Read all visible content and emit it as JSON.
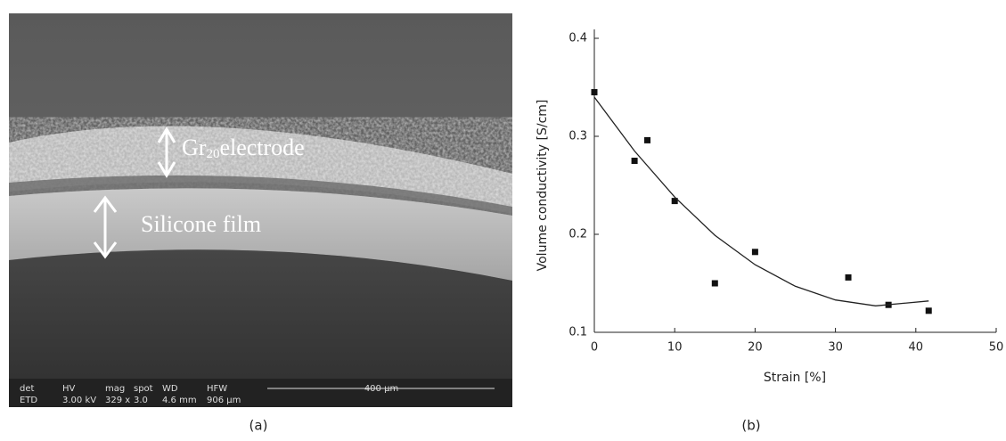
{
  "image": {
    "electrode_label": {
      "main": "Gr",
      "subscript": "20",
      "rest": "electrode"
    },
    "film_label": "Silicone film",
    "info_headers": [
      "det",
      "HV",
      "mag",
      "spot",
      "WD",
      "HFW"
    ],
    "info_values": [
      "ETD",
      "3.00 kV",
      "329 x",
      "3.0",
      "4.6 mm",
      "906 µm"
    ],
    "scale_bar": "400 µm",
    "caption": "(a)"
  },
  "chart_data": {
    "type": "scatter",
    "caption": "(b)",
    "x_label": "Strain [%]",
    "y_label": "Volume conductivity [S/cm]",
    "xlim": [
      0,
      50
    ],
    "ylim": [
      0.1,
      0.4
    ],
    "xticks": [
      0,
      10,
      20,
      30,
      40,
      50
    ],
    "yticks": [
      0.1,
      0.2,
      0.3,
      0.4
    ],
    "series": [
      {
        "mode": "markers",
        "color": "#111111",
        "x": [
          0,
          5,
          6.6,
          10,
          15,
          20,
          31.6,
          36.6,
          41.6
        ],
        "values": [
          0.345,
          0.275,
          0.296,
          0.234,
          0.15,
          0.182,
          0.156,
          0.128,
          0.122
        ]
      },
      {
        "mode": "line",
        "color": "#222222",
        "x": [
          0,
          5,
          10,
          15,
          20,
          25,
          30,
          35,
          41.6
        ],
        "values": [
          0.34,
          0.285,
          0.238,
          0.199,
          0.169,
          0.147,
          0.133,
          0.127,
          0.132
        ]
      }
    ]
  }
}
